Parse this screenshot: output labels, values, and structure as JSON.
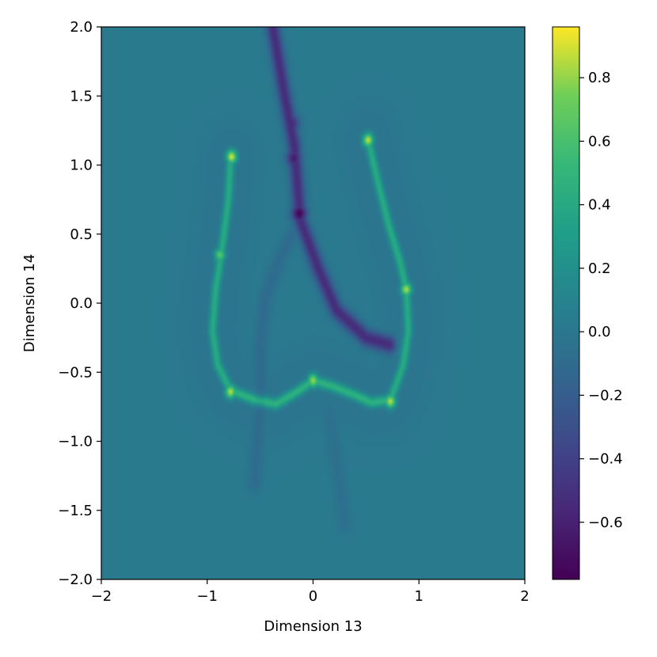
{
  "chart_data": {
    "type": "heatmap",
    "xlabel": "Dimension 13",
    "ylabel": "Dimension 14",
    "xlim": [
      -2,
      2
    ],
    "ylim": [
      -2,
      2
    ],
    "x_ticks": [
      -2,
      -1,
      0,
      1,
      2
    ],
    "y_ticks": [
      -2.0,
      -1.5,
      -1.0,
      -0.5,
      0.0,
      0.5,
      1.0,
      1.5,
      2.0
    ],
    "x_tick_labels": [
      "−2",
      "−1",
      "0",
      "1",
      "2"
    ],
    "y_tick_labels": [
      "−2.0",
      "−1.5",
      "−1.0",
      "−0.5",
      "0.0",
      "0.5",
      "1.0",
      "1.5",
      "2.0"
    ],
    "background_value": 0.02,
    "colormap": "viridis",
    "colorbar": {
      "vmin": -0.78,
      "vmax": 0.96,
      "ticks": [
        -0.6,
        -0.4,
        -0.2,
        0.0,
        0.2,
        0.4,
        0.6,
        0.8
      ],
      "tick_labels": [
        "−0.6",
        "−0.4",
        "−0.2",
        "0.0",
        "0.2",
        "0.4",
        "0.6",
        "0.8"
      ]
    },
    "features": {
      "bright_ridges": [
        {
          "points": [
            [
              -0.78,
              1.05
            ],
            [
              -0.8,
              0.75
            ],
            [
              -0.86,
              0.4
            ],
            [
              -0.92,
              0.1
            ],
            [
              -0.95,
              -0.2
            ],
            [
              -0.9,
              -0.45
            ],
            [
              -0.78,
              -0.63
            ]
          ],
          "value": 0.45
        },
        {
          "points": [
            [
              0.52,
              1.18
            ],
            [
              0.62,
              0.85
            ],
            [
              0.72,
              0.55
            ],
            [
              0.82,
              0.3
            ],
            [
              0.88,
              0.1
            ],
            [
              0.9,
              -0.2
            ],
            [
              0.85,
              -0.45
            ],
            [
              0.73,
              -0.7
            ]
          ],
          "value": 0.45
        },
        {
          "points": [
            [
              -0.78,
              -0.63
            ],
            [
              -0.55,
              -0.7
            ],
            [
              -0.35,
              -0.73
            ],
            [
              -0.15,
              -0.64
            ],
            [
              0.0,
              -0.56
            ],
            [
              0.18,
              -0.6
            ],
            [
              0.38,
              -0.66
            ],
            [
              0.55,
              -0.72
            ],
            [
              0.73,
              -0.7
            ]
          ],
          "value": 0.5
        }
      ],
      "bright_spots": [
        {
          "x": -0.77,
          "y": 1.06,
          "value": 0.95
        },
        {
          "x": 0.52,
          "y": 1.18,
          "value": 0.92
        },
        {
          "x": 0.88,
          "y": 0.1,
          "value": 0.88
        },
        {
          "x": -0.78,
          "y": -0.64,
          "value": 0.9
        },
        {
          "x": 0.73,
          "y": -0.71,
          "value": 0.9
        },
        {
          "x": 0.0,
          "y": -0.56,
          "value": 0.85
        },
        {
          "x": -0.88,
          "y": 0.35,
          "value": 0.7
        }
      ],
      "dark_valleys": [
        {
          "points": [
            [
              -0.38,
              2.0
            ],
            [
              -0.28,
              1.55
            ],
            [
              -0.18,
              1.15
            ],
            [
              -0.12,
              0.6
            ],
            [
              0.05,
              0.25
            ],
            [
              0.22,
              -0.05
            ],
            [
              0.5,
              -0.25
            ],
            [
              0.72,
              -0.3
            ]
          ],
          "value": -0.55
        },
        {
          "points": [
            [
              -0.12,
              0.6
            ],
            [
              -0.3,
              0.35
            ],
            [
              -0.45,
              0.05
            ],
            [
              -0.5,
              -0.3
            ],
            [
              -0.5,
              -0.7
            ],
            [
              -0.55,
              -1.3
            ]
          ],
          "value": -0.12
        },
        {
          "points": [
            [
              0.15,
              -0.8
            ],
            [
              0.25,
              -1.3
            ],
            [
              0.3,
              -1.6
            ]
          ],
          "value": -0.08
        }
      ],
      "dark_spots": [
        {
          "x": -0.13,
          "y": 0.65,
          "value": -0.78
        },
        {
          "x": -0.18,
          "y": 1.05,
          "value": -0.65
        },
        {
          "x": -0.2,
          "y": 1.3,
          "value": -0.55
        }
      ]
    }
  }
}
